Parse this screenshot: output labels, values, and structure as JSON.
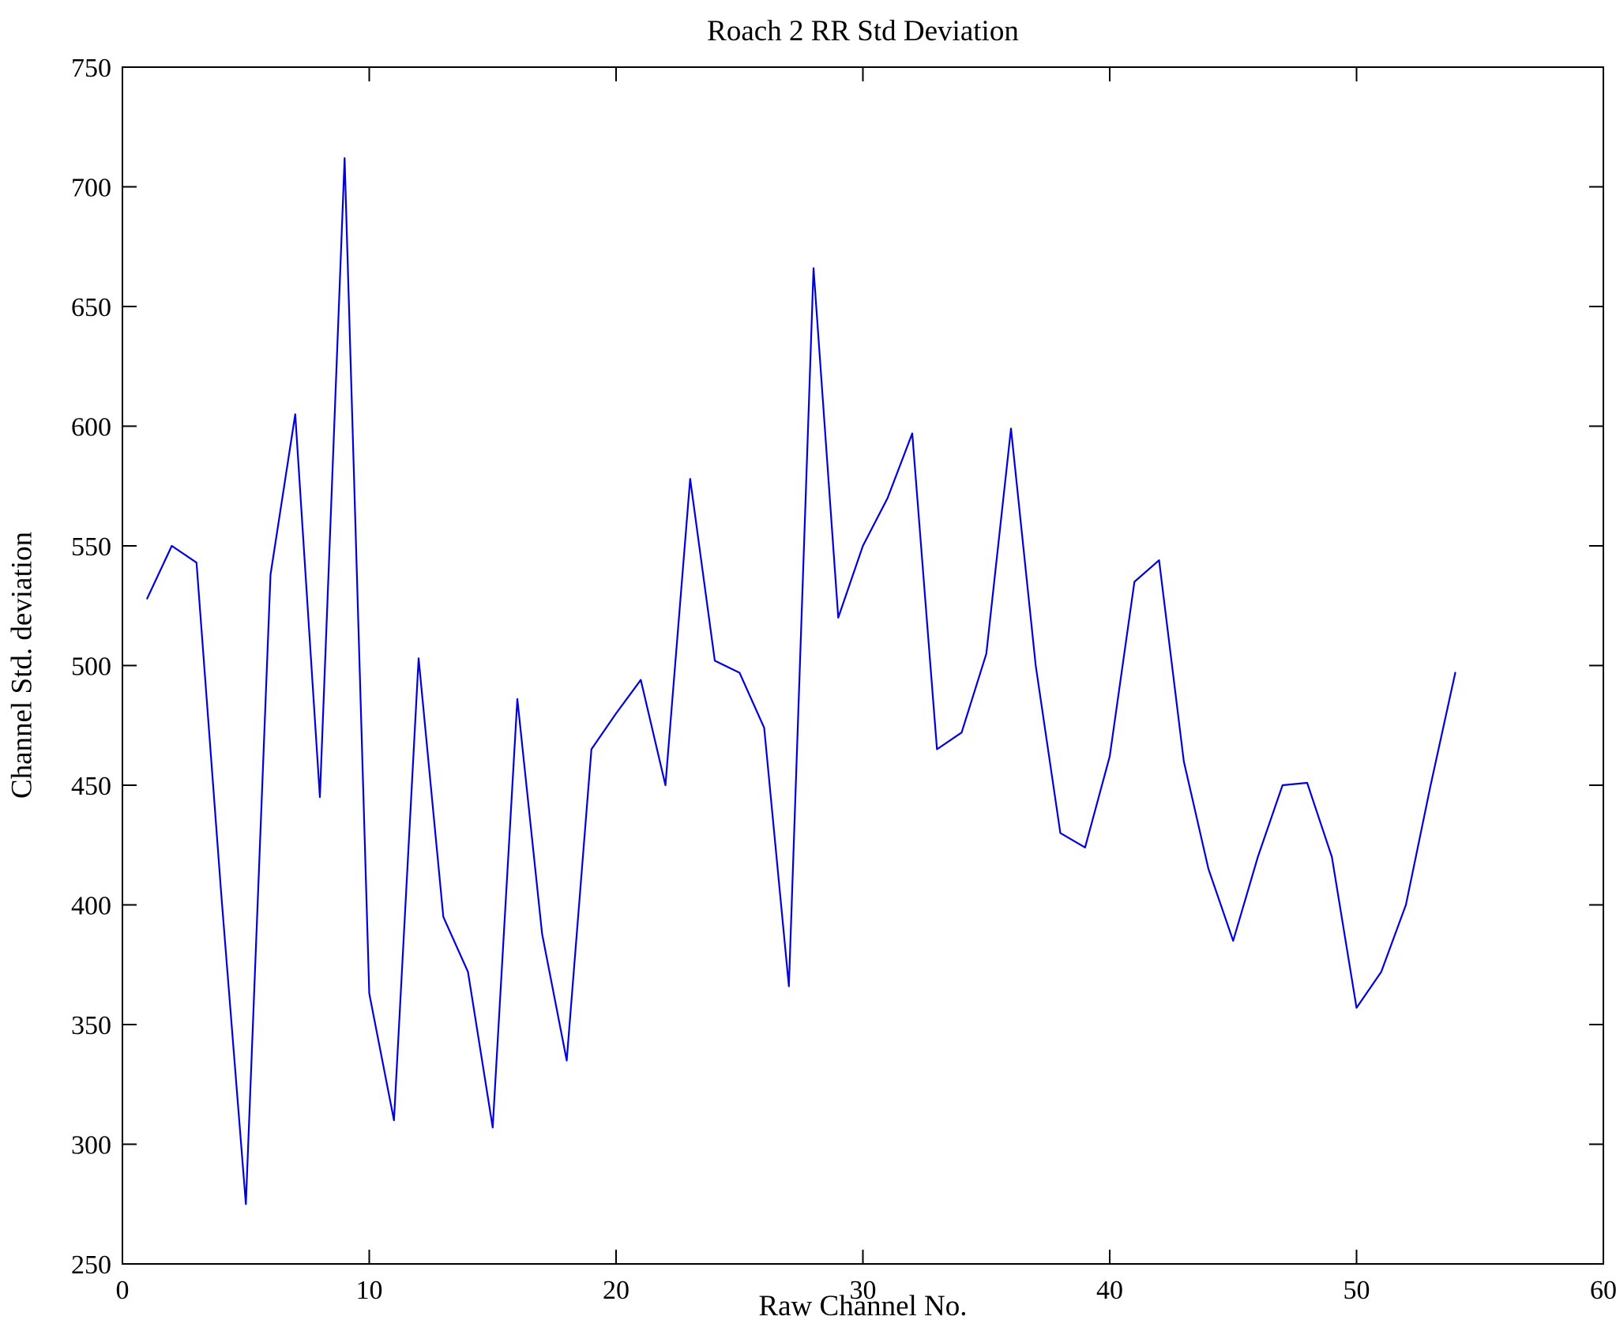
{
  "chart_data": {
    "type": "line",
    "title": "Roach 2 RR Std Deviation",
    "xlabel": "Raw Channel No.",
    "ylabel": "Channel Std. deviation",
    "xlim": [
      0,
      60
    ],
    "ylim": [
      250,
      750
    ],
    "xticks": [
      0,
      10,
      20,
      30,
      40,
      50,
      60
    ],
    "yticks": [
      250,
      300,
      350,
      400,
      450,
      500,
      550,
      600,
      650,
      700,
      750
    ],
    "grid": false,
    "legend": "none",
    "line_color": "#0000dd",
    "axis_color": "#000000",
    "x": [
      1,
      2,
      3,
      4,
      5,
      6,
      7,
      8,
      9,
      10,
      11,
      12,
      13,
      14,
      15,
      16,
      17,
      18,
      19,
      20,
      21,
      22,
      23,
      24,
      25,
      26,
      27,
      28,
      29,
      30,
      31,
      32,
      33,
      34,
      35,
      36,
      37,
      38,
      39,
      40,
      41,
      42,
      43,
      44,
      45,
      46,
      47,
      48,
      49,
      50,
      51,
      52,
      53,
      54
    ],
    "y": [
      528,
      550,
      543,
      405,
      275,
      538,
      605,
      445,
      712,
      363,
      310,
      503,
      395,
      372,
      307,
      486,
      388,
      335,
      465,
      480,
      494,
      450,
      578,
      502,
      497,
      474,
      366,
      666,
      520,
      550,
      570,
      597,
      465,
      472,
      505,
      599,
      500,
      430,
      424,
      462,
      535,
      544,
      460,
      415,
      385,
      420,
      450,
      451,
      420,
      357,
      372,
      400,
      450,
      497
    ]
  }
}
